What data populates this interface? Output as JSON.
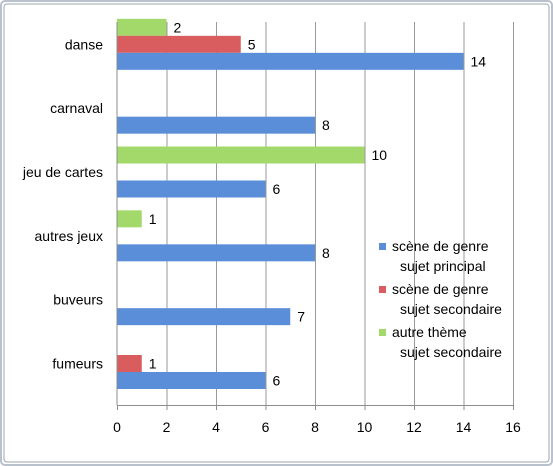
{
  "colors": {
    "frame": "#b9c2cc",
    "grid": "#9a9a9a",
    "axis": "#8c8c8c",
    "background": "#ffffff"
  },
  "chart_data": {
    "type": "bar",
    "orientation": "horizontal",
    "categories": [
      "danse",
      "carnaval",
      "jeu de cartes",
      "autres jeux",
      "buveurs",
      "fumeurs"
    ],
    "series": [
      {
        "name": "scène de genre\nsujet principal",
        "color": "#5b8ed8",
        "values": [
          14,
          8,
          6,
          8,
          7,
          6
        ]
      },
      {
        "name": "scène de genre\nsujet secondaire",
        "color": "#d95c5f",
        "values": [
          5,
          null,
          null,
          null,
          null,
          1
        ]
      },
      {
        "name": "autre thème\nsujet secondaire",
        "color": "#a3d86b",
        "values": [
          2,
          null,
          10,
          1,
          null,
          null
        ]
      }
    ],
    "xlim": [
      0,
      16
    ],
    "xticks": [
      0,
      2,
      4,
      6,
      8,
      10,
      12,
      14,
      16
    ],
    "grid": "vertical",
    "legend_position": "right",
    "title": "",
    "xlabel": "",
    "ylabel": ""
  }
}
